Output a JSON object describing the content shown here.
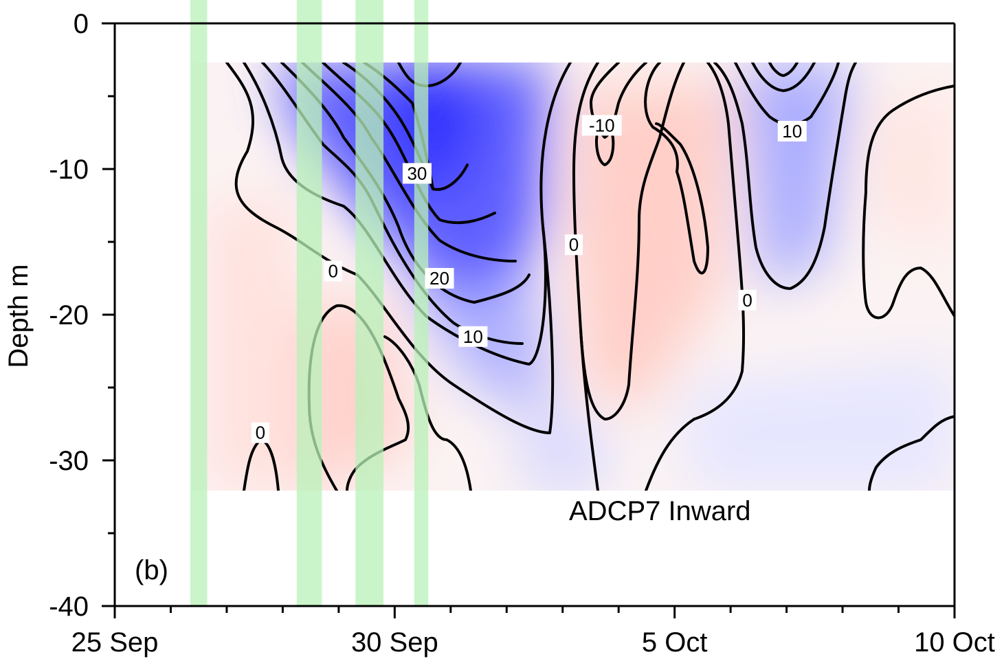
{
  "chart_data": {
    "type": "heatmap",
    "subtype": "filled contour (depth vs time)",
    "annotation": "ADCP7 Inward",
    "panel_label": "(b)",
    "ylabel": "Depth m",
    "xlabel": "",
    "ylim": [
      -40,
      0
    ],
    "data_depth_range": [
      -32,
      -2.7
    ],
    "yticks": [
      0,
      -10,
      -20,
      -30,
      -40
    ],
    "ytick_labels": [
      "0",
      "-10",
      "-20",
      "-30",
      "-40"
    ],
    "xlim": [
      "25 Sep",
      "10 Oct"
    ],
    "xticks": [
      "25 Sep",
      "30 Sep",
      "5 Oct",
      "10 Oct"
    ],
    "x_minor_tick_interval_days": 1,
    "data_start": "26.3 Sep",
    "colormap": {
      "positive": "#2b2bff",
      "zero": "#ffffff",
      "negative": "#ffc8c0"
    },
    "contour_labels": [
      {
        "text": "30",
        "day": 5.4,
        "depth": -10.3
      },
      {
        "text": "20",
        "day": 5.8,
        "depth": -17.5
      },
      {
        "text": "10",
        "day": 6.4,
        "depth": -21.5
      },
      {
        "text": "0",
        "day": 3.9,
        "depth": -17.0
      },
      {
        "text": "0",
        "day": 2.6,
        "depth": -28.1
      },
      {
        "text": "0",
        "day": 8.2,
        "depth": -15.2
      },
      {
        "text": "-10",
        "day": 8.7,
        "depth": -7.0
      },
      {
        "text": "0",
        "day": 11.3,
        "depth": -19.0
      },
      {
        "text": "10",
        "day": 12.1,
        "depth": -7.4
      }
    ],
    "shaded_periods": [
      {
        "start": 26.35,
        "end": 26.65
      },
      {
        "start": 28.25,
        "end": 28.7
      },
      {
        "start": 29.3,
        "end": 29.8
      },
      {
        "start": 30.35,
        "end": 30.6
      }
    ],
    "shaded_period_color": "#b8f2b8"
  }
}
